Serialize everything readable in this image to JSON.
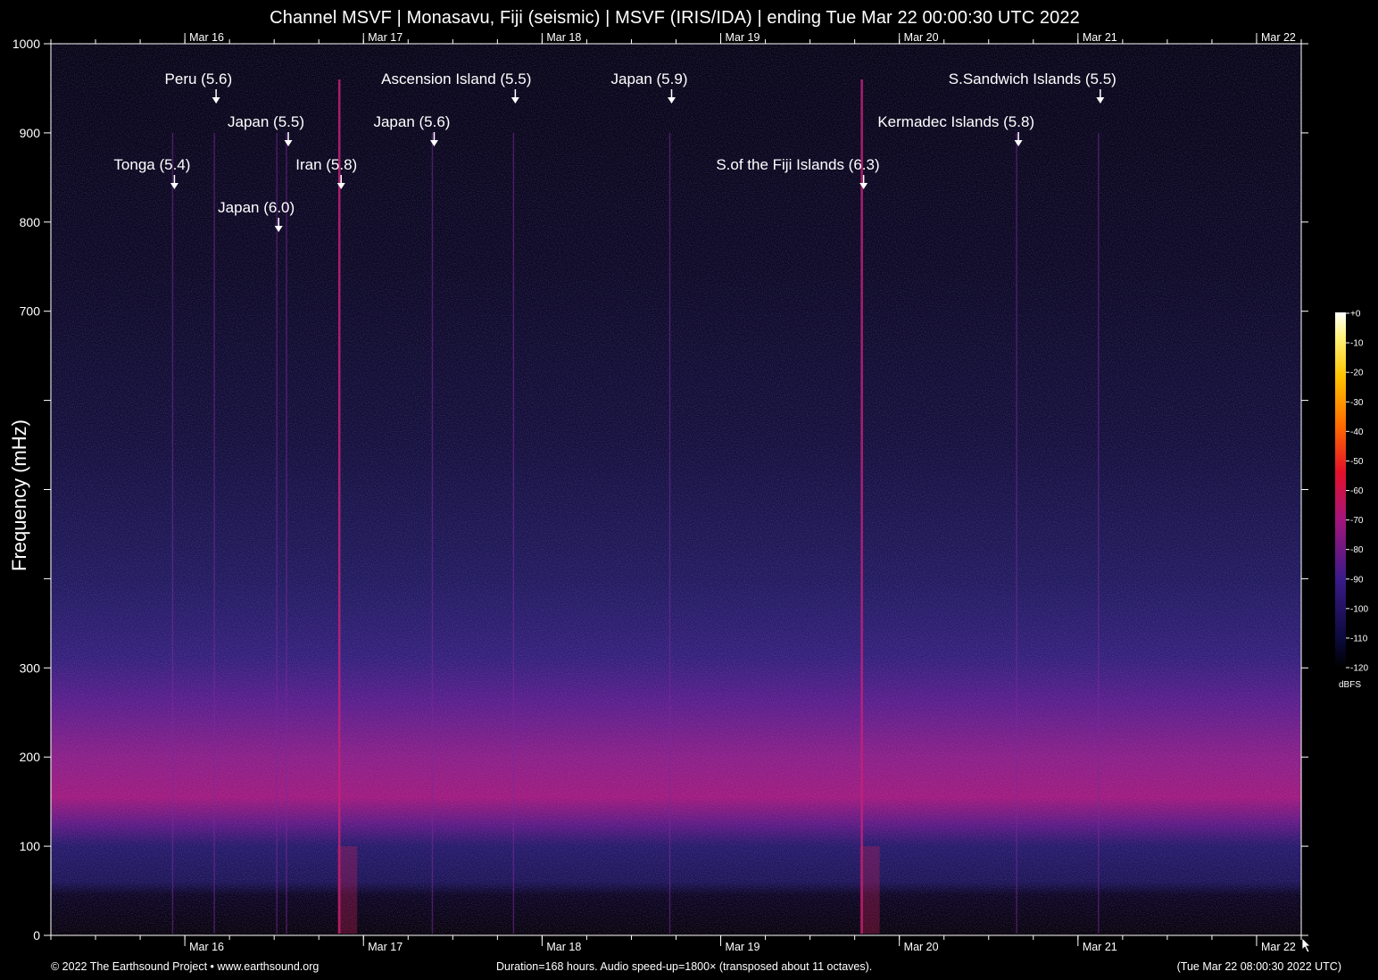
{
  "title": "Channel MSVF | Monasavu, Fiji (seismic) | MSVF (IRIS/IDA) | ending Tue Mar 22 00:00:30 UTC 2022",
  "footer": {
    "left": "© 2022 The Earthsound Project • www.earthsound.org",
    "center": "Duration=168 hours. Audio speed-up=1800× (transposed about 11 octaves).",
    "right": "(Tue Mar 22 08:00:30 2022 UTC)"
  },
  "colors": {
    "background": "#000000",
    "band_magenta": "#b01c7a",
    "noise_blue": "#2a1a6e",
    "annotation": "#ffffff"
  },
  "icons": [
    "cursor-arrow-icon"
  ],
  "chart_data": {
    "type": "heatmap",
    "title": "Channel MSVF | Monasavu, Fiji (seismic) | MSVF (IRIS/IDA) | ending Tue Mar 22 00:00:30 UTC 2022",
    "ylabel": "Frequency (mHz)",
    "xlabel": "",
    "x_unit": "hours",
    "xlim": [
      0,
      168
    ],
    "ylim": [
      0,
      1000
    ],
    "x_ticks": [
      {
        "hour": 18,
        "label": "Mar 16"
      },
      {
        "hour": 42,
        "label": "Mar 17"
      },
      {
        "hour": 66,
        "label": "Mar 18"
      },
      {
        "hour": 90,
        "label": "Mar 19"
      },
      {
        "hour": 114,
        "label": "Mar 20"
      },
      {
        "hour": 138,
        "label": "Mar 21"
      },
      {
        "hour": 162,
        "label": "Mar 22"
      }
    ],
    "x_minor_tick_step_hours": 6,
    "y_ticks": [
      {
        "value": 0,
        "label": "0"
      },
      {
        "value": 100,
        "label": "100"
      },
      {
        "value": 200,
        "label": "200"
      },
      {
        "value": 300,
        "label": "300"
      },
      {
        "value": 400,
        "label": ""
      },
      {
        "value": 500,
        "label": ""
      },
      {
        "value": 600,
        "label": ""
      },
      {
        "value": 700,
        "label": "700"
      },
      {
        "value": 800,
        "label": "800"
      },
      {
        "value": 900,
        "label": "900"
      },
      {
        "value": 1000,
        "label": "1000"
      }
    ],
    "colorbar": {
      "unit": "dBFS",
      "ticks": [
        "+0",
        "-10",
        "-20",
        "-30",
        "-40",
        "-50",
        "-60",
        "-70",
        "-80",
        "-90",
        "-100",
        "-110",
        "-120"
      ]
    },
    "events": [
      {
        "label": "Peru (5.6)",
        "hour": 22.2,
        "row": 0
      },
      {
        "label": "Ascension Island (5.5)",
        "hour": 62.4,
        "row": 0
      },
      {
        "label": "Japan (5.9)",
        "hour": 83.4,
        "row": 0
      },
      {
        "label": "S.Sandwich Islands (5.5)",
        "hour": 141.0,
        "row": 0
      },
      {
        "label": "Japan (5.5)",
        "hour": 31.9,
        "row": 1
      },
      {
        "label": "Japan (5.6)",
        "hour": 51.5,
        "row": 1
      },
      {
        "label": "Kermadec Islands (5.8)",
        "hour": 130.0,
        "row": 1
      },
      {
        "label": "Tonga (5.4)",
        "hour": 16.6,
        "row": 2
      },
      {
        "label": "Iran (5.8)",
        "hour": 39.0,
        "row": 2
      },
      {
        "label": "S.of the Fiji Islands (6.3)",
        "hour": 109.2,
        "row": 2
      },
      {
        "label": "Japan (6.0)",
        "hour": 30.6,
        "row": 3
      }
    ]
  }
}
